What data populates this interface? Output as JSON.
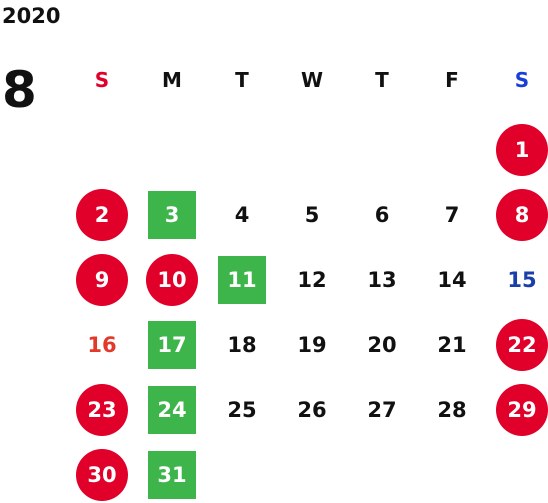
{
  "calendar": {
    "year": "2020",
    "month": "8",
    "weekdays": [
      "S",
      "M",
      "T",
      "W",
      "T",
      "F",
      "S"
    ],
    "colors": {
      "holiday_circle": "#e0002a",
      "green_square": "#3db54a",
      "sunday_text": "#e23a2a",
      "saturday_text": "#1a3fa8",
      "default_text": "#111111"
    },
    "weeks": [
      [
        null,
        null,
        null,
        null,
        null,
        null,
        {
          "day": "1",
          "style": "circle"
        }
      ],
      [
        {
          "day": "2",
          "style": "circle"
        },
        {
          "day": "3",
          "style": "square"
        },
        {
          "day": "4",
          "style": "plain"
        },
        {
          "day": "5",
          "style": "plain"
        },
        {
          "day": "6",
          "style": "plain"
        },
        {
          "day": "7",
          "style": "plain"
        },
        {
          "day": "8",
          "style": "circle"
        }
      ],
      [
        {
          "day": "9",
          "style": "circle"
        },
        {
          "day": "10",
          "style": "circle"
        },
        {
          "day": "11",
          "style": "square"
        },
        {
          "day": "12",
          "style": "plain"
        },
        {
          "day": "13",
          "style": "plain"
        },
        {
          "day": "14",
          "style": "plain"
        },
        {
          "day": "15",
          "style": "blue"
        }
      ],
      [
        {
          "day": "16",
          "style": "red"
        },
        {
          "day": "17",
          "style": "square"
        },
        {
          "day": "18",
          "style": "plain"
        },
        {
          "day": "19",
          "style": "plain"
        },
        {
          "day": "20",
          "style": "plain"
        },
        {
          "day": "21",
          "style": "plain"
        },
        {
          "day": "22",
          "style": "circle"
        }
      ],
      [
        {
          "day": "23",
          "style": "circle"
        },
        {
          "day": "24",
          "style": "square"
        },
        {
          "day": "25",
          "style": "plain"
        },
        {
          "day": "26",
          "style": "plain"
        },
        {
          "day": "27",
          "style": "plain"
        },
        {
          "day": "28",
          "style": "plain"
        },
        {
          "day": "29",
          "style": "circle"
        }
      ],
      [
        {
          "day": "30",
          "style": "circle"
        },
        {
          "day": "31",
          "style": "square"
        },
        null,
        null,
        null,
        null,
        null
      ]
    ]
  }
}
